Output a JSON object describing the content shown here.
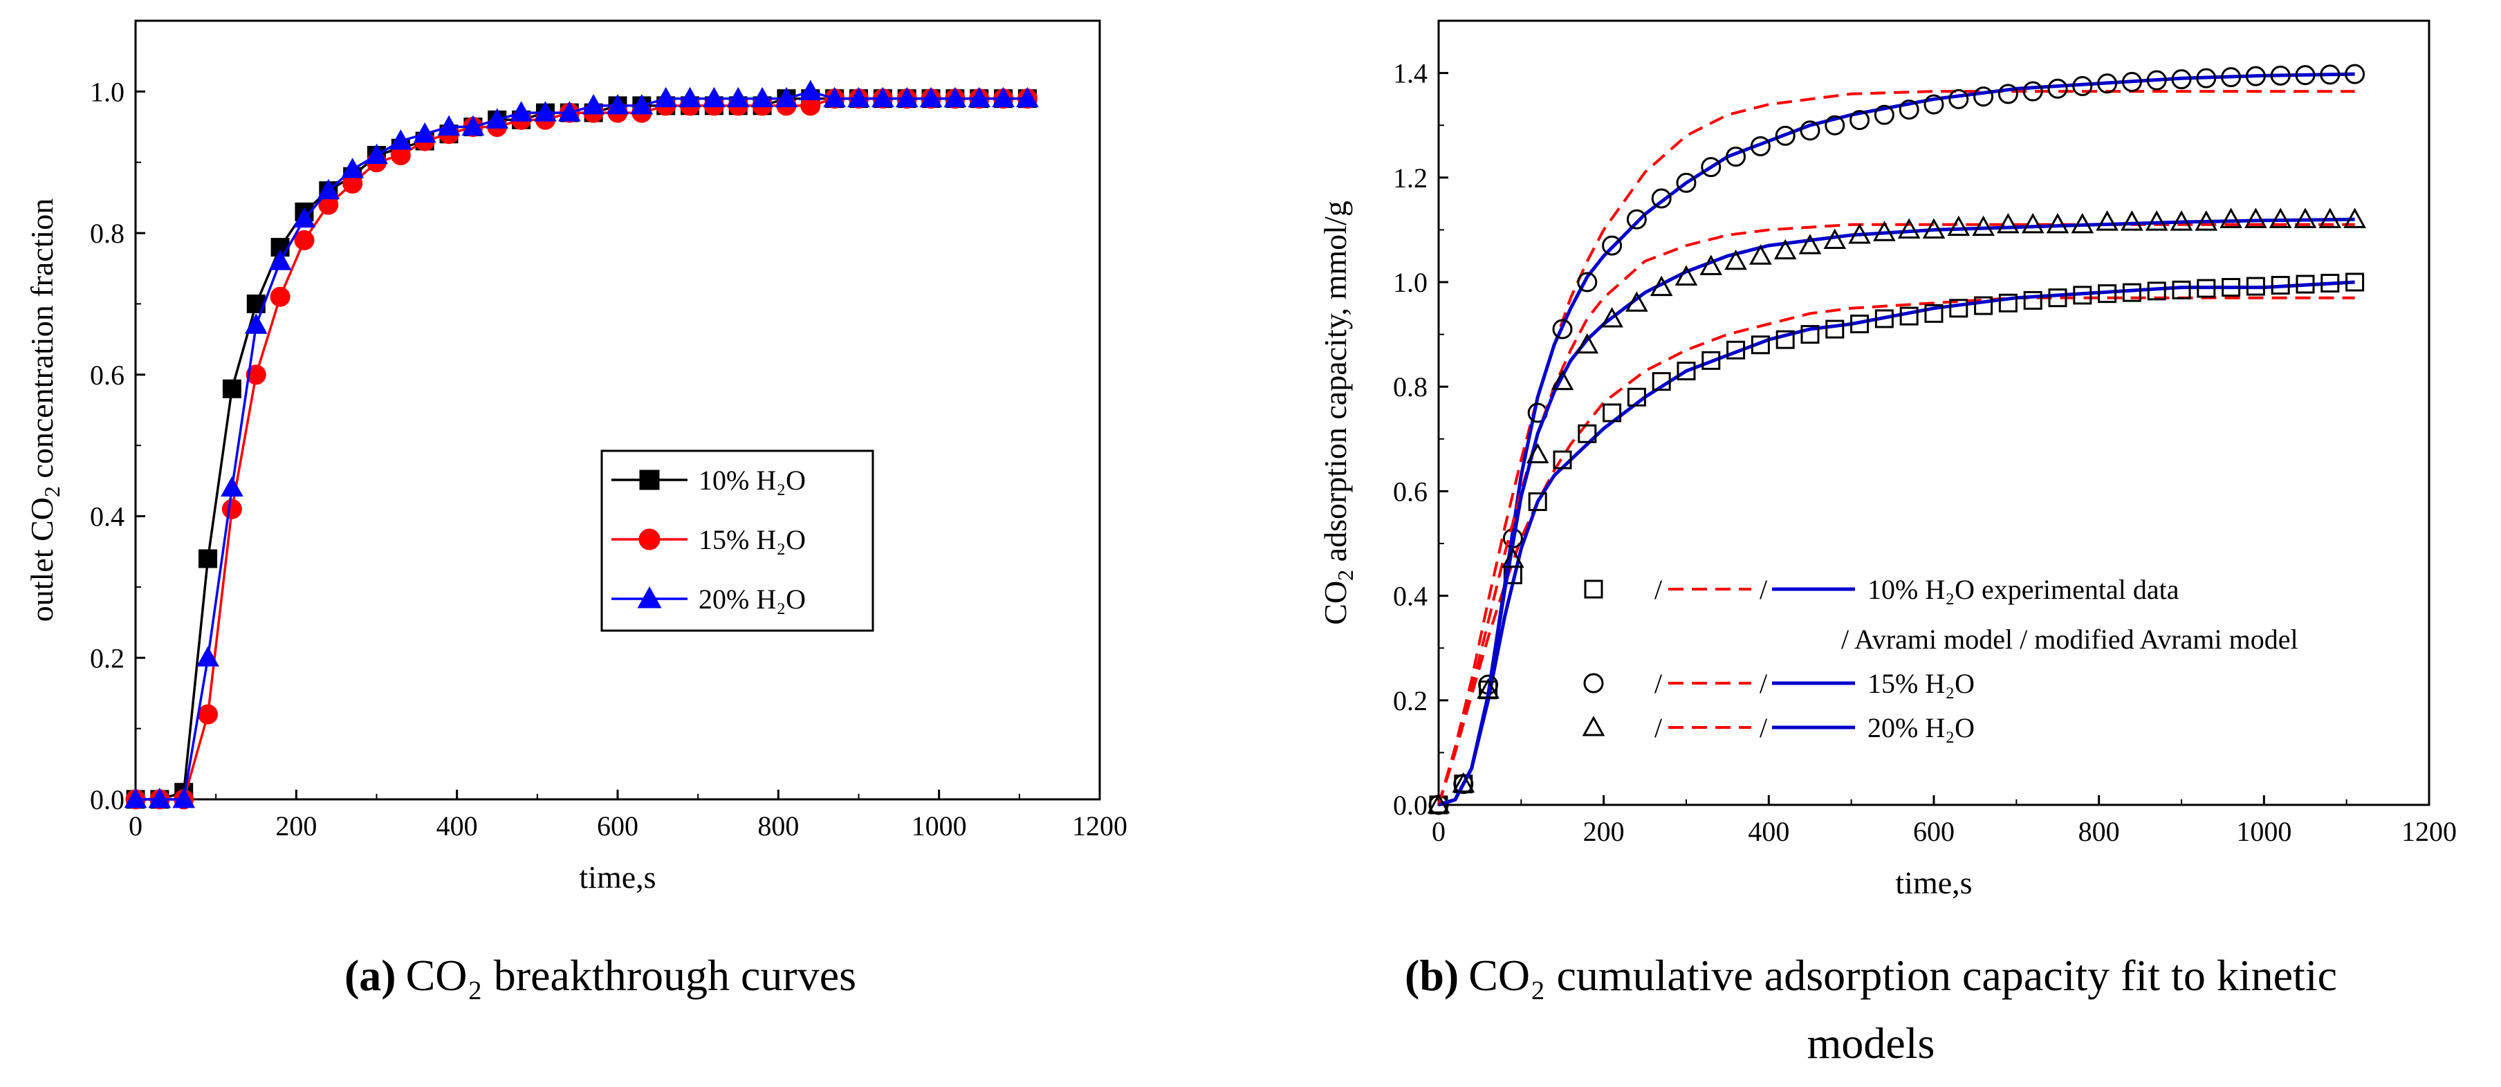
{
  "chart_data": [
    {
      "type": "line",
      "panel": "a",
      "caption": {
        "label": "(a)",
        "text": "CO₂ breakthrough curves"
      },
      "xlabel": "time,s",
      "ylabel": {
        "pre": "outlet CO",
        "sub": "2",
        "post": " concentration fraction"
      },
      "xlim": [
        0,
        1200
      ],
      "ylim": [
        0,
        1.1
      ],
      "xticks": [
        0,
        200,
        400,
        600,
        800,
        1000,
        1200
      ],
      "yticks": [
        0.0,
        0.2,
        0.4,
        0.6,
        0.8,
        1.0
      ],
      "ytick_labels": [
        "0.0",
        "0.2",
        "0.4",
        "0.6",
        "0.8",
        "1.0"
      ],
      "legend_position": "center-right",
      "series": [
        {
          "name": "10% H₂O",
          "color": "#000000",
          "marker": "square",
          "x": [
            0,
            30,
            60,
            90,
            120,
            150,
            180,
            210,
            240,
            270,
            300,
            330,
            360,
            390,
            420,
            450,
            480,
            510,
            540,
            570,
            600,
            630,
            660,
            690,
            720,
            750,
            780,
            810,
            840,
            870,
            900,
            930,
            960,
            990,
            1020,
            1050,
            1080,
            1110
          ],
          "values": [
            0.0,
            0.0,
            0.01,
            0.34,
            0.58,
            0.7,
            0.78,
            0.83,
            0.86,
            0.88,
            0.91,
            0.92,
            0.93,
            0.94,
            0.95,
            0.96,
            0.96,
            0.97,
            0.97,
            0.97,
            0.98,
            0.98,
            0.98,
            0.98,
            0.98,
            0.98,
            0.98,
            0.99,
            0.99,
            0.99,
            0.99,
            0.99,
            0.99,
            0.99,
            0.99,
            0.99,
            0.99,
            0.99
          ]
        },
        {
          "name": "15% H₂O",
          "color": "#ff0000",
          "marker": "circle",
          "x": [
            0,
            30,
            60,
            90,
            120,
            150,
            180,
            210,
            240,
            270,
            300,
            330,
            360,
            390,
            420,
            450,
            480,
            510,
            540,
            570,
            600,
            630,
            660,
            690,
            720,
            750,
            780,
            810,
            840,
            870,
            900,
            930,
            960,
            990,
            1020,
            1050,
            1080,
            1110
          ],
          "values": [
            0.0,
            0.0,
            0.0,
            0.12,
            0.41,
            0.6,
            0.71,
            0.79,
            0.84,
            0.87,
            0.9,
            0.91,
            0.93,
            0.94,
            0.95,
            0.95,
            0.96,
            0.96,
            0.97,
            0.97,
            0.97,
            0.97,
            0.98,
            0.98,
            0.98,
            0.98,
            0.98,
            0.98,
            0.98,
            0.99,
            0.99,
            0.99,
            0.99,
            0.99,
            0.99,
            0.99,
            0.99,
            0.99
          ]
        },
        {
          "name": "20% H₂O",
          "color": "#0000ff",
          "marker": "triangle",
          "x": [
            0,
            30,
            60,
            90,
            120,
            150,
            180,
            210,
            240,
            270,
            300,
            330,
            360,
            390,
            420,
            450,
            480,
            510,
            540,
            570,
            600,
            630,
            660,
            690,
            720,
            750,
            780,
            810,
            840,
            870,
            900,
            930,
            960,
            990,
            1020,
            1050,
            1080,
            1110
          ],
          "values": [
            0.0,
            0.0,
            0.0,
            0.2,
            0.44,
            0.67,
            0.76,
            0.82,
            0.86,
            0.89,
            0.91,
            0.93,
            0.94,
            0.95,
            0.95,
            0.96,
            0.97,
            0.97,
            0.97,
            0.98,
            0.98,
            0.98,
            0.99,
            0.99,
            0.99,
            0.99,
            0.99,
            0.99,
            1.0,
            0.99,
            0.99,
            0.99,
            0.99,
            0.99,
            0.99,
            0.99,
            0.99,
            0.99
          ]
        }
      ]
    },
    {
      "type": "line",
      "panel": "b",
      "caption": {
        "label": "(b)",
        "line1": "CO₂ cumulative adsorption capacity fit to kinetic",
        "line2": "models"
      },
      "xlabel": "time,s",
      "ylabel": {
        "pre": "CO",
        "sub": "2",
        "post": " adsorption capacity, mmol/g"
      },
      "xlim": [
        0,
        1200
      ],
      "ylim": [
        0,
        1.5
      ],
      "xticks": [
        0,
        200,
        400,
        600,
        800,
        1000,
        1200
      ],
      "yticks": [
        0.0,
        0.2,
        0.4,
        0.6,
        0.8,
        1.0,
        1.2,
        1.4
      ],
      "ytick_labels": [
        "0.0",
        "0.2",
        "0.4",
        "0.6",
        "0.8",
        "1.0",
        "1.2",
        "1.4"
      ],
      "legend_position": "lower-right",
      "legend": {
        "rows": [
          "10% H₂O  experimental data",
          "/ Avrami model / modified Avrami model",
          "15% H₂O",
          "20% H₂O"
        ],
        "separator": "/"
      },
      "series": [
        {
          "name": "10% H₂O",
          "marker": "square",
          "experimental": {
            "x": [
              0,
              30,
              60,
              90,
              120,
              150,
              180,
              210,
              240,
              270,
              300,
              330,
              360,
              390,
              420,
              450,
              480,
              510,
              540,
              570,
              600,
              630,
              660,
              690,
              720,
              750,
              780,
              810,
              840,
              870,
              900,
              930,
              960,
              990,
              1020,
              1050,
              1080,
              1110
            ],
            "values": [
              0.0,
              0.04,
              0.22,
              0.44,
              0.58,
              0.66,
              0.71,
              0.75,
              0.78,
              0.81,
              0.83,
              0.85,
              0.87,
              0.88,
              0.89,
              0.9,
              0.91,
              0.92,
              0.93,
              0.935,
              0.94,
              0.95,
              0.955,
              0.96,
              0.965,
              0.97,
              0.975,
              0.978,
              0.98,
              0.983,
              0.985,
              0.988,
              0.99,
              0.992,
              0.994,
              0.996,
              0.998,
              1.0
            ]
          },
          "avrami": {
            "x": [
              0,
              20,
              40,
              60,
              80,
              100,
              120,
              140,
              160,
              180,
              200,
              250,
              300,
              350,
              400,
              450,
              500,
              600,
              700,
              800,
              900,
              1000,
              1110
            ],
            "values": [
              0.0,
              0.1,
              0.21,
              0.32,
              0.42,
              0.51,
              0.58,
              0.64,
              0.69,
              0.73,
              0.77,
              0.83,
              0.87,
              0.9,
              0.92,
              0.94,
              0.95,
              0.96,
              0.97,
              0.97,
              0.97,
              0.97,
              0.97
            ]
          },
          "modified_avrami": {
            "x": [
              0,
              20,
              40,
              60,
              80,
              100,
              120,
              140,
              160,
              180,
              200,
              250,
              300,
              350,
              400,
              450,
              500,
              600,
              700,
              800,
              900,
              1000,
              1110
            ],
            "values": [
              0.0,
              0.01,
              0.07,
              0.2,
              0.36,
              0.49,
              0.58,
              0.63,
              0.66,
              0.69,
              0.72,
              0.78,
              0.83,
              0.86,
              0.89,
              0.91,
              0.92,
              0.95,
              0.97,
              0.98,
              0.99,
              0.99,
              1.0
            ]
          }
        },
        {
          "name": "15% H₂O",
          "marker": "circle",
          "experimental": {
            "x": [
              0,
              30,
              60,
              90,
              120,
              150,
              180,
              210,
              240,
              270,
              300,
              330,
              360,
              390,
              420,
              450,
              480,
              510,
              540,
              570,
              600,
              630,
              660,
              690,
              720,
              750,
              780,
              810,
              840,
              870,
              900,
              930,
              960,
              990,
              1020,
              1050,
              1080,
              1110
            ],
            "values": [
              0.0,
              0.04,
              0.23,
              0.51,
              0.75,
              0.91,
              1.0,
              1.07,
              1.12,
              1.16,
              1.19,
              1.22,
              1.24,
              1.26,
              1.28,
              1.29,
              1.3,
              1.31,
              1.32,
              1.33,
              1.34,
              1.35,
              1.355,
              1.36,
              1.365,
              1.37,
              1.375,
              1.38,
              1.383,
              1.386,
              1.388,
              1.39,
              1.392,
              1.394,
              1.395,
              1.396,
              1.397,
              1.398
            ]
          },
          "avrami": {
            "x": [
              0,
              20,
              40,
              60,
              80,
              100,
              120,
              140,
              160,
              180,
              200,
              250,
              300,
              350,
              400,
              450,
              500,
              600,
              700,
              800,
              900,
              1000,
              1110
            ],
            "values": [
              0.0,
              0.11,
              0.24,
              0.39,
              0.53,
              0.66,
              0.78,
              0.88,
              0.97,
              1.04,
              1.1,
              1.21,
              1.28,
              1.32,
              1.34,
              1.35,
              1.36,
              1.365,
              1.365,
              1.365,
              1.365,
              1.365,
              1.365
            ]
          },
          "modified_avrami": {
            "x": [
              0,
              20,
              40,
              60,
              80,
              100,
              120,
              140,
              160,
              180,
              200,
              250,
              300,
              350,
              400,
              450,
              500,
              600,
              700,
              800,
              900,
              1000,
              1110
            ],
            "values": [
              0.0,
              0.01,
              0.07,
              0.21,
              0.42,
              0.63,
              0.78,
              0.88,
              0.95,
              1.01,
              1.05,
              1.13,
              1.19,
              1.24,
              1.27,
              1.3,
              1.32,
              1.35,
              1.37,
              1.38,
              1.39,
              1.395,
              1.398
            ]
          }
        },
        {
          "name": "20% H₂O",
          "marker": "triangle",
          "experimental": {
            "x": [
              0,
              30,
              60,
              90,
              120,
              150,
              180,
              210,
              240,
              270,
              300,
              330,
              360,
              390,
              420,
              450,
              480,
              510,
              540,
              570,
              600,
              630,
              660,
              690,
              720,
              750,
              780,
              810,
              840,
              870,
              900,
              930,
              960,
              990,
              1020,
              1050,
              1080,
              1110
            ],
            "values": [
              0.0,
              0.04,
              0.22,
              0.47,
              0.67,
              0.81,
              0.88,
              0.93,
              0.96,
              0.99,
              1.01,
              1.03,
              1.04,
              1.05,
              1.06,
              1.07,
              1.08,
              1.09,
              1.095,
              1.1,
              1.1,
              1.105,
              1.105,
              1.11,
              1.11,
              1.11,
              1.11,
              1.115,
              1.115,
              1.115,
              1.115,
              1.115,
              1.12,
              1.12,
              1.12,
              1.12,
              1.12,
              1.12
            ]
          },
          "avrami": {
            "x": [
              0,
              20,
              40,
              60,
              80,
              100,
              120,
              140,
              160,
              180,
              200,
              250,
              300,
              350,
              400,
              450,
              500,
              600,
              700,
              800,
              900,
              1000,
              1110
            ],
            "values": [
              0.0,
              0.1,
              0.22,
              0.35,
              0.48,
              0.6,
              0.71,
              0.8,
              0.87,
              0.93,
              0.97,
              1.04,
              1.07,
              1.09,
              1.1,
              1.105,
              1.11,
              1.11,
              1.11,
              1.11,
              1.11,
              1.11,
              1.11
            ]
          },
          "modified_avrami": {
            "x": [
              0,
              20,
              40,
              60,
              80,
              100,
              120,
              140,
              160,
              180,
              200,
              250,
              300,
              350,
              400,
              450,
              500,
              600,
              700,
              800,
              900,
              1000,
              1110
            ],
            "values": [
              0.0,
              0.01,
              0.07,
              0.21,
              0.41,
              0.59,
              0.71,
              0.79,
              0.85,
              0.89,
              0.92,
              0.98,
              1.02,
              1.05,
              1.07,
              1.08,
              1.09,
              1.1,
              1.105,
              1.11,
              1.115,
              1.118,
              1.12
            ]
          }
        }
      ],
      "colors": {
        "experimental": "#000000",
        "avrami": "#ff0000",
        "modified_avrami": "#0000cc"
      }
    }
  ]
}
